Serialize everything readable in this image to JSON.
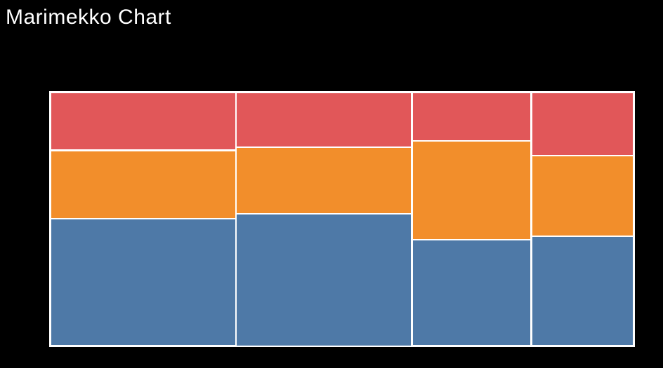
{
  "page": {
    "background_color": "#000000"
  },
  "header": {
    "title": "Marimekko Chart",
    "title_color": "#ffffff"
  },
  "chart_data": {
    "type": "bar",
    "variant": "marimekko",
    "title": "Marimekko Chart",
    "xlabel": "",
    "ylabel": "",
    "axes_visible": false,
    "legend_visible": false,
    "grid": false,
    "background": "#000000",
    "separator_color": "#ffffff",
    "column_width_pct": [
      31.9,
      30.2,
      20.4,
      17.5
    ],
    "series": [
      {
        "name": "red-top",
        "color": "#E15759",
        "values_pct": [
          22.8,
          21.5,
          19.0,
          24.9
        ]
      },
      {
        "name": "orange-middle",
        "color": "#F28E2B",
        "values_pct": [
          26.7,
          26.0,
          38.9,
          31.7
        ]
      },
      {
        "name": "blue-bottom",
        "color": "#4E79A7",
        "values_pct": [
          50.5,
          52.5,
          42.1,
          43.4
        ]
      }
    ]
  }
}
